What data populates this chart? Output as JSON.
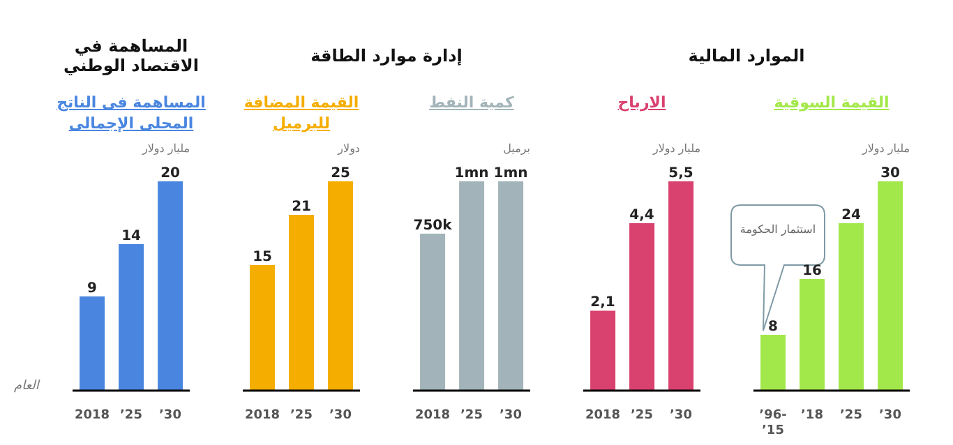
{
  "chart_data": [
    {
      "type": "bar",
      "title": "المساهمة في الاقتصاد الوطني",
      "subtitle": "المساهمة فى الناتج المحلى الإجمالى",
      "ylabel": "مليار دولار",
      "xlabel": "العام",
      "categories": [
        "2018",
        "’25",
        "’30"
      ],
      "values": [
        9,
        14,
        20
      ],
      "color": "#4a86e0",
      "data_labels": true,
      "legend": false,
      "grid": false
    },
    {
      "type": "bar",
      "title": "إدارة موارد الطاقة",
      "subtitle": "القيمة المضافة للبرميل",
      "ylabel": "دولار",
      "categories": [
        "2018",
        "’25",
        "’30"
      ],
      "values": [
        15,
        21,
        25
      ],
      "color": "#f5ad00",
      "data_labels": true,
      "legend": false,
      "grid": false
    },
    {
      "type": "bar",
      "subtitle": "كمية النفط",
      "ylabel": "برميل",
      "categories": [
        "2018",
        "’25",
        "’30"
      ],
      "values": [
        750000,
        1000000,
        1000000
      ],
      "value_labels": [
        "750k",
        "1mn",
        "1mn"
      ],
      "color": "#a2b4b9",
      "legend": false,
      "grid": false
    },
    {
      "type": "bar",
      "title": "الموارد المالية",
      "subtitle": "الارباح",
      "ylabel": "مليار دولار",
      "categories": [
        "2018",
        "’25",
        "’30"
      ],
      "values": [
        2.1,
        4.4,
        5.5
      ],
      "value_labels": [
        "2,1",
        "4,4",
        "5,5"
      ],
      "color": "#d9416e",
      "legend": false,
      "grid": false
    },
    {
      "type": "bar",
      "subtitle": "القيمة السوقية",
      "ylabel": "مليار دولار",
      "categories": [
        "’96-’15",
        "’18",
        "’25",
        "’30"
      ],
      "values": [
        8,
        16,
        24,
        30
      ],
      "color": "#a3e84a",
      "data_labels": true,
      "legend": false,
      "grid": false,
      "annotations": [
        "استثمار الحكومة"
      ]
    }
  ]
}
